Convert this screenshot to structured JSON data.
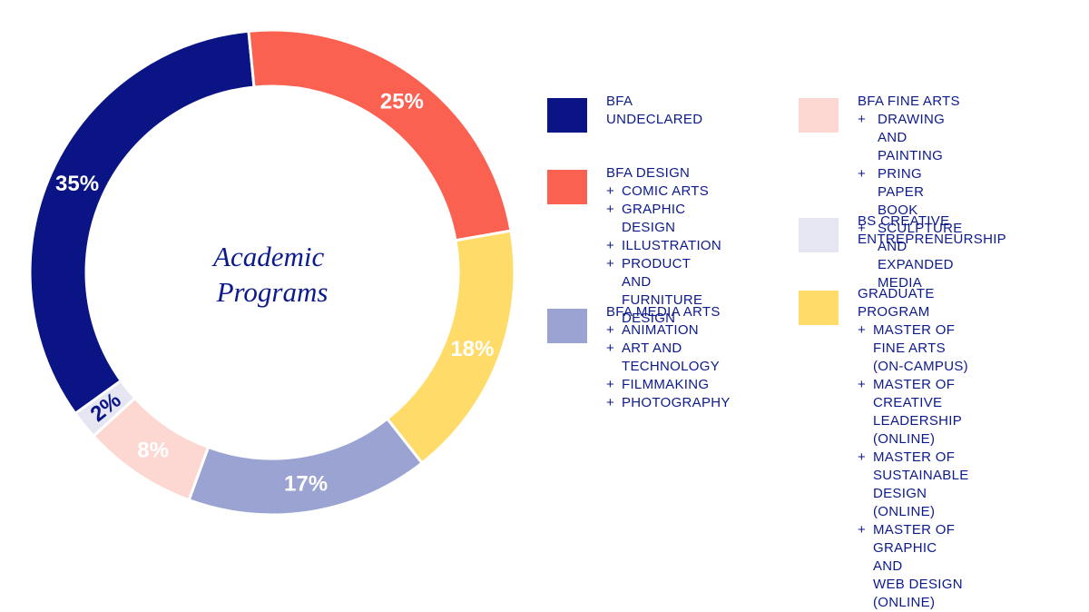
{
  "colors": {
    "text": "#0d1a8c",
    "undeclared": "#0a1485",
    "design": "#fb6150",
    "media": "#9aa3d1",
    "fine": "#fdd8d3",
    "creative": "#e5e6f2",
    "graduate": "#ffdc6a"
  },
  "chart_data": {
    "type": "pie",
    "title": "Academic Programs",
    "title_lines": [
      "Academic",
      "Programs"
    ],
    "slices": [
      {
        "key": "undeclared",
        "label": "BFA UNDECLARED",
        "value": 35,
        "display": "35%",
        "color": "#0a1485",
        "label_color": "#ffffff"
      },
      {
        "key": "design",
        "label": "BFA DESIGN",
        "value": 25,
        "display": "25%",
        "color": "#fb6150",
        "label_color": "#ffffff"
      },
      {
        "key": "graduate",
        "label": "GRADUATE PROGRAM",
        "value": 18,
        "display": "18%",
        "color": "#ffdc6a",
        "label_color": "#ffffff"
      },
      {
        "key": "media",
        "label": "BFA MEDIA ARTS",
        "value": 17,
        "display": "17%",
        "color": "#9aa3d1",
        "label_color": "#ffffff"
      },
      {
        "key": "fine",
        "label": "BFA FINE ARTS",
        "value": 8,
        "display": "8%",
        "color": "#fdd8d3",
        "label_color": "#ffffff"
      },
      {
        "key": "creative",
        "label": "BS CREATIVE ENTREPRENEURSHIP",
        "value": 2,
        "display": "2%",
        "color": "#e5e6f2",
        "label_color": "#0a1485"
      }
    ],
    "legend_placement": "right"
  },
  "legend": {
    "undeclared": {
      "label": "BFA UNDECLARED",
      "color": "#0a1485",
      "subs": []
    },
    "design": {
      "label": "BFA DESIGN",
      "color": "#fb6150",
      "subs": [
        "COMIC ARTS",
        "GRAPHIC DESIGN",
        "ILLUSTRATION",
        "PRODUCT AND\nFURNITURE DESIGN"
      ]
    },
    "media": {
      "label": "BFA MEDIA ARTS",
      "color": "#9aa3d1",
      "subs": [
        "ANIMATION",
        "ART AND TECHNOLOGY",
        "FILMMAKING",
        "PHOTOGRAPHY"
      ]
    },
    "fine": {
      "label": "BFA FINE ARTS",
      "color": "#fdd8d3",
      "subs": [
        "DRAWING AND PAINTING",
        "PRING PAPER BOOK",
        "SCULPTURE AND\nEXPANDED MEDIA"
      ]
    },
    "creative": {
      "label": "BS CREATIVE\nENTREPRENEURSHIP",
      "color": "#e5e6f2",
      "subs": []
    },
    "graduate": {
      "label": "GRADUATE PROGRAM",
      "color": "#ffdc6a",
      "subs": [
        "MASTER OF FINE ARTS\n(ON-CAMPUS)",
        "MASTER OF CREATIVE\nLEADERSHIP (ONLINE)",
        "MASTER OF SUSTAINABLE\nDESIGN (ONLINE)",
        "MASTER OF GRAPHIC AND\nWEB DESIGN (ONLINE)"
      ]
    }
  },
  "plus_symbol": "+"
}
